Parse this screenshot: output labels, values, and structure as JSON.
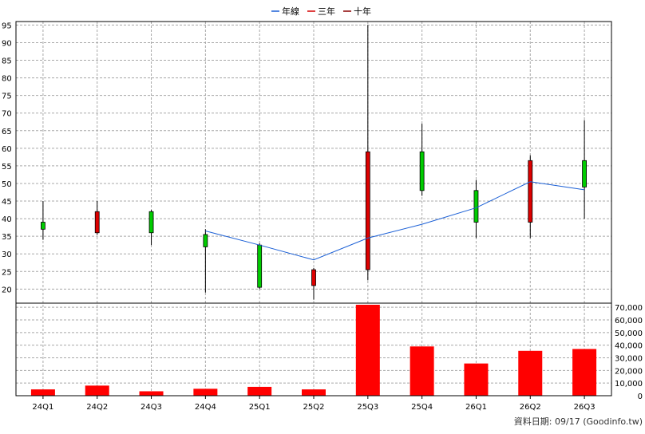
{
  "legend": [
    {
      "label": "年線",
      "color": "#1a5fd6"
    },
    {
      "label": "三年",
      "color": "#d40000"
    },
    {
      "label": "十年",
      "color": "#8b0000"
    }
  ],
  "footer": {
    "text": "資料日期: 09/17  (Goodinfo.tw)"
  },
  "chart_data": [
    {
      "type": "candlestick",
      "categories": [
        "24Q1",
        "24Q2",
        "24Q3",
        "24Q4",
        "25Q1",
        "25Q2",
        "25Q3",
        "25Q4",
        "26Q1",
        "26Q2",
        "26Q3"
      ],
      "ohlc": [
        {
          "open": 37,
          "high": 45,
          "low": 34,
          "close": 39
        },
        {
          "open": 42,
          "high": 45,
          "low": 35.5,
          "close": 36
        },
        {
          "open": 36,
          "high": 42.5,
          "low": 32.5,
          "close": 42
        },
        {
          "open": 32,
          "high": 37,
          "low": 19,
          "close": 35.5
        },
        {
          "open": 20.5,
          "high": 33,
          "low": 20,
          "close": 32.5
        },
        {
          "open": 25.5,
          "high": 26,
          "low": 17,
          "close": 21
        },
        {
          "open": 59,
          "high": 95,
          "low": 22.5,
          "close": 25.5
        },
        {
          "open": 48,
          "high": 67,
          "low": 46.5,
          "close": 59
        },
        {
          "open": 39,
          "high": 51,
          "low": 34.5,
          "close": 48
        },
        {
          "open": 56.5,
          "high": 58,
          "low": 34.5,
          "close": 39
        },
        {
          "open": 49,
          "high": 68,
          "low": 40,
          "close": 56.5
        }
      ],
      "candle_colors": {
        "up": "#00cc00",
        "down": "#dd0000"
      },
      "series": [
        {
          "name": "年線",
          "values": [
            null,
            null,
            null,
            36.5,
            32.5,
            28.3,
            34.5,
            38.4,
            43.1,
            50.5,
            48.2
          ]
        }
      ],
      "ylim": [
        16,
        96
      ],
      "yticks": [
        20,
        25,
        30,
        35,
        40,
        45,
        50,
        55,
        60,
        65,
        70,
        75,
        80,
        85,
        90,
        95
      ],
      "grid": true,
      "legend_position": "top-center"
    },
    {
      "type": "bar",
      "categories": [
        "24Q1",
        "24Q2",
        "24Q3",
        "24Q4",
        "25Q1",
        "25Q2",
        "25Q3",
        "25Q4",
        "26Q1",
        "26Q2",
        "26Q3"
      ],
      "values": [
        5000,
        8000,
        3500,
        5500,
        7000,
        5000,
        72000,
        39000,
        25500,
        35500,
        37000
      ],
      "bar_color": "#ff0000",
      "ylim": [
        0,
        72000
      ],
      "yticks": [
        0,
        10000,
        20000,
        30000,
        40000,
        50000,
        60000,
        70000
      ],
      "ytick_labels": [
        "0",
        "10,000",
        "20,000",
        "30,000",
        "40,000",
        "50,000",
        "60,000",
        "70,000"
      ],
      "grid": true
    }
  ]
}
